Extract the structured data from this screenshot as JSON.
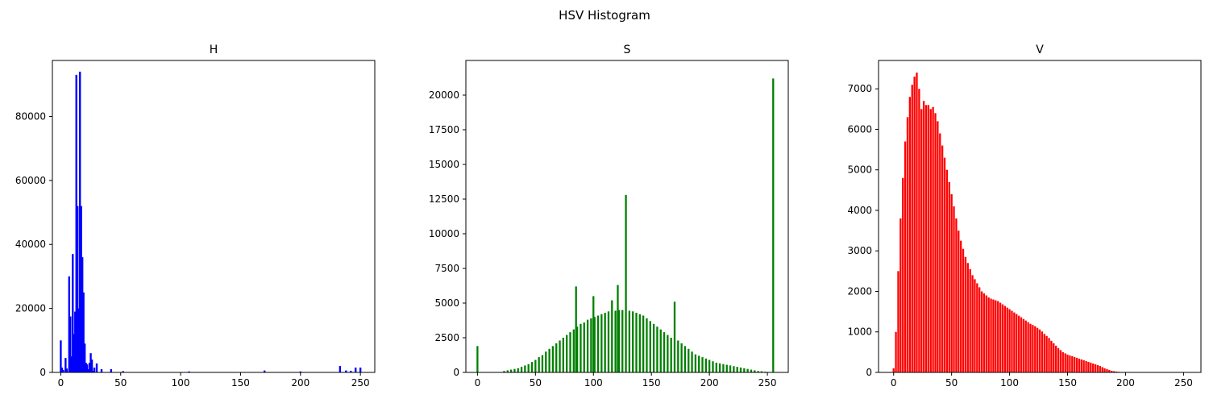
{
  "figure": {
    "suptitle": "HSV Histogram"
  },
  "chart_data": [
    {
      "type": "bar",
      "title": "H",
      "color": "#0000ff",
      "xlim": [
        -7,
        262
      ],
      "ylim": [
        0,
        97500
      ],
      "xticks": [
        0,
        50,
        100,
        150,
        200,
        250
      ],
      "yticks": [
        0,
        20000,
        40000,
        60000,
        80000
      ],
      "x": [
        0,
        1,
        2,
        4,
        5,
        7,
        8,
        9,
        10,
        11,
        12,
        13,
        14,
        15,
        16,
        17,
        18,
        19,
        20,
        21,
        22,
        23,
        24,
        25,
        26,
        27,
        28,
        30,
        34,
        42,
        52,
        107,
        170,
        200,
        233,
        238,
        242,
        246,
        250
      ],
      "values": [
        10000,
        1500,
        800,
        4500,
        1200,
        30000,
        17500,
        5000,
        37000,
        12000,
        19000,
        93000,
        52000,
        20000,
        94000,
        52000,
        36000,
        25000,
        9000,
        3000,
        2500,
        1000,
        3000,
        6000,
        4000,
        500,
        1500,
        2800,
        1000,
        1000,
        400,
        300,
        600,
        300,
        2000,
        600,
        500,
        1500,
        1500
      ]
    },
    {
      "type": "bar",
      "title": "S",
      "color": "#008000",
      "xlim": [
        -10,
        268
      ],
      "ylim": [
        0,
        22500
      ],
      "xticks": [
        0,
        50,
        100,
        150,
        200,
        250
      ],
      "yticks": [
        0,
        2500,
        5000,
        7500,
        10000,
        12500,
        15000,
        17500,
        20000
      ],
      "x": [
        0,
        23,
        26,
        29,
        32,
        35,
        38,
        41,
        44,
        47,
        50,
        53,
        56,
        59,
        62,
        65,
        68,
        71,
        74,
        77,
        80,
        83,
        85,
        86,
        89,
        92,
        95,
        98,
        100,
        101,
        104,
        107,
        110,
        113,
        116,
        119,
        121,
        122,
        125,
        128,
        131,
        134,
        137,
        140,
        143,
        146,
        149,
        152,
        155,
        158,
        161,
        164,
        167,
        170,
        173,
        176,
        179,
        182,
        185,
        188,
        191,
        194,
        197,
        200,
        203,
        206,
        209,
        212,
        215,
        218,
        221,
        224,
        227,
        230,
        233,
        236,
        239,
        242,
        245,
        248,
        255
      ],
      "values": [
        1900,
        100,
        150,
        200,
        250,
        300,
        400,
        500,
        600,
        750,
        900,
        1100,
        1250,
        1500,
        1700,
        1900,
        2100,
        2300,
        2500,
        2700,
        2900,
        3100,
        6200,
        3300,
        3500,
        3600,
        3800,
        3900,
        5500,
        4000,
        4100,
        4200,
        4300,
        4400,
        5200,
        4450,
        6300,
        4500,
        4500,
        12800,
        4450,
        4400,
        4300,
        4200,
        4100,
        3900,
        3700,
        3500,
        3300,
        3100,
        2900,
        2700,
        2500,
        5100,
        2300,
        2100,
        1900,
        1700,
        1500,
        1300,
        1200,
        1100,
        1000,
        900,
        800,
        700,
        650,
        600,
        550,
        500,
        450,
        400,
        350,
        300,
        250,
        200,
        150,
        100,
        80,
        50,
        21200
      ]
    },
    {
      "type": "bar",
      "title": "V",
      "color": "#ff0000",
      "xlim": [
        -13,
        265
      ],
      "ylim": [
        0,
        7700
      ],
      "xticks": [
        0,
        50,
        100,
        150,
        200,
        250
      ],
      "yticks": [
        0,
        1000,
        2000,
        3000,
        4000,
        5000,
        6000,
        7000
      ],
      "x": [
        0,
        2,
        4,
        6,
        8,
        10,
        12,
        14,
        16,
        18,
        20,
        22,
        24,
        26,
        28,
        30,
        32,
        34,
        36,
        38,
        40,
        42,
        44,
        46,
        48,
        50,
        52,
        54,
        56,
        58,
        60,
        62,
        64,
        66,
        68,
        70,
        72,
        74,
        76,
        78,
        80,
        82,
        84,
        86,
        88,
        90,
        92,
        94,
        96,
        98,
        100,
        102,
        104,
        106,
        108,
        110,
        112,
        114,
        116,
        118,
        120,
        122,
        124,
        126,
        128,
        130,
        132,
        134,
        136,
        138,
        140,
        142,
        144,
        146,
        148,
        150,
        152,
        154,
        156,
        158,
        160,
        162,
        164,
        166,
        168,
        170,
        172,
        174,
        176,
        178,
        180,
        182,
        184,
        186,
        188,
        190,
        192,
        194,
        196,
        198,
        200,
        202,
        204,
        206,
        208,
        210,
        212,
        214,
        216,
        218,
        220,
        222,
        224,
        226,
        228,
        230,
        232,
        234,
        236,
        238,
        240,
        242,
        244,
        246,
        248,
        250,
        252,
        254
      ],
      "values": [
        100,
        1000,
        2500,
        3800,
        4800,
        5700,
        6300,
        6800,
        7100,
        7300,
        7400,
        7000,
        6500,
        6700,
        6600,
        6600,
        6500,
        6550,
        6400,
        6200,
        5900,
        5600,
        5300,
        5000,
        4700,
        4400,
        4100,
        3800,
        3500,
        3250,
        3050,
        2850,
        2700,
        2550,
        2400,
        2300,
        2200,
        2100,
        2000,
        1950,
        1900,
        1850,
        1820,
        1800,
        1780,
        1760,
        1720,
        1680,
        1640,
        1600,
        1560,
        1520,
        1480,
        1440,
        1400,
        1360,
        1320,
        1280,
        1240,
        1200,
        1170,
        1140,
        1100,
        1060,
        1010,
        950,
        900,
        850,
        780,
        720,
        660,
        600,
        550,
        500,
        470,
        440,
        420,
        400,
        380,
        360,
        340,
        320,
        300,
        280,
        260,
        240,
        220,
        200,
        180,
        160,
        130,
        100,
        80,
        60,
        40,
        30,
        20,
        15,
        10,
        8,
        6,
        5,
        4,
        3,
        3,
        2,
        2,
        2,
        1,
        1,
        1,
        1,
        1,
        1,
        1,
        1,
        1,
        1,
        1,
        1,
        1,
        1,
        1,
        1,
        1,
        1,
        1,
        1
      ]
    }
  ]
}
